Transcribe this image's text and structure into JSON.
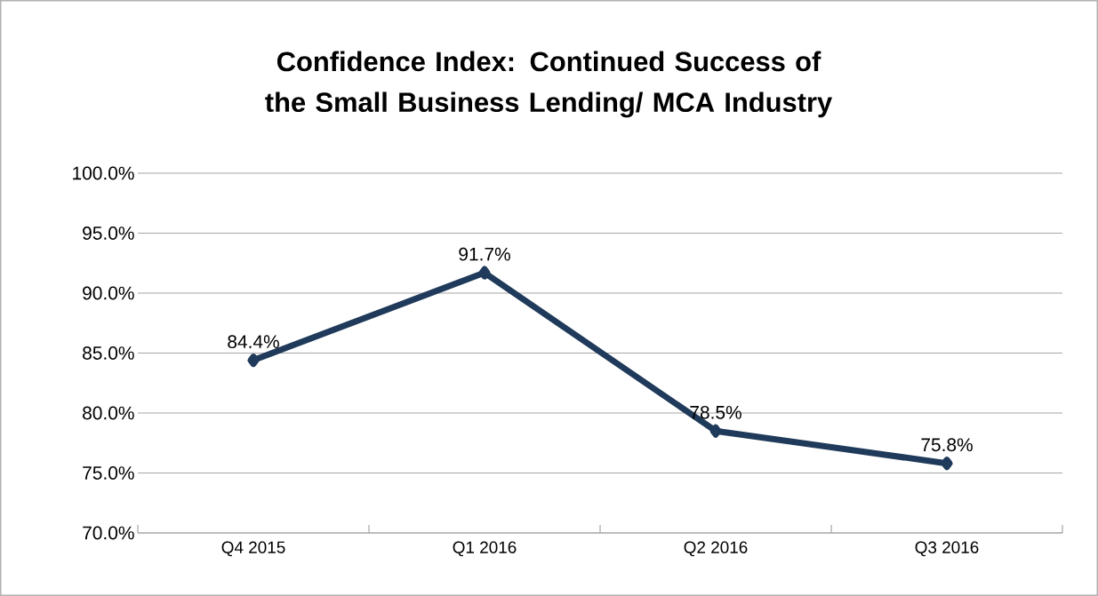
{
  "chart_data": {
    "type": "line",
    "title": "Confidence Index: Continued Success of the Small Business Lending/ MCA Industry",
    "categories": [
      "Q4 2015",
      "Q1 2016",
      "Q2 2016",
      "Q3 2016"
    ],
    "values": [
      84.4,
      91.7,
      78.5,
      75.8
    ],
    "value_labels": [
      "84.4%",
      "91.7%",
      "78.5%",
      "75.8%"
    ],
    "color": "#1f3a5a",
    "marker": "diamond",
    "ylim": [
      70,
      100
    ],
    "yticks": [
      {
        "value": 70,
        "label": "70.0%"
      },
      {
        "value": 75,
        "label": "75.0%"
      },
      {
        "value": 80,
        "label": "80.0%"
      },
      {
        "value": 85,
        "label": "85.0%"
      },
      {
        "value": 90,
        "label": "90.0%"
      },
      {
        "value": 95,
        "label": "95.0%"
      },
      {
        "value": 100,
        "label": "100.0%"
      }
    ],
    "grid": "y"
  }
}
